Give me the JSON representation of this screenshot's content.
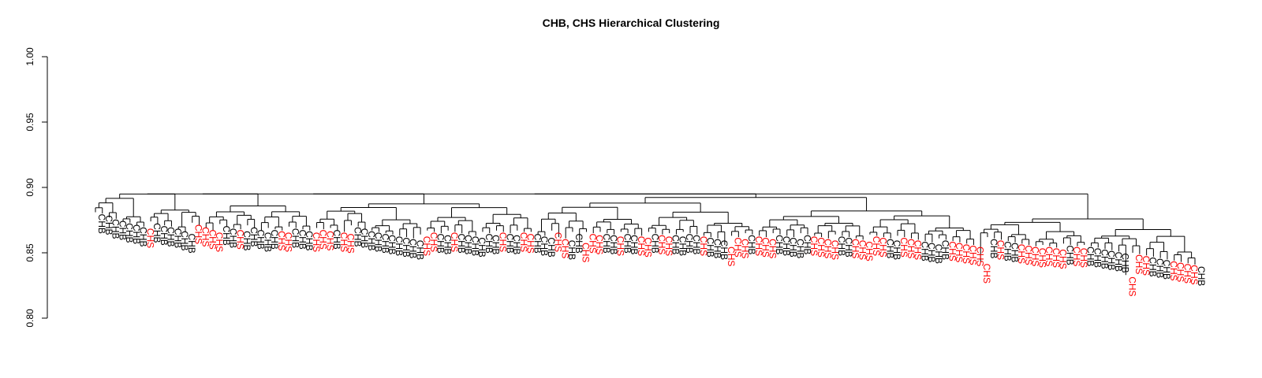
{
  "chart_data": {
    "type": "dendrogram",
    "title": "CHB, CHS Hierarchical Clustering",
    "xlabel": "",
    "ylabel": "",
    "ylim": [
      0.8,
      1.0
    ],
    "yticks": [
      "0.80",
      "0.85",
      "0.90",
      "0.95",
      "1.00"
    ],
    "label_colors": {
      "CHB": "#000000",
      "CHS": "#ff0000"
    },
    "leaves": [
      {
        "label": "CHB",
        "h": 0.881
      },
      {
        "label": "CHB",
        "h": 0.88
      },
      {
        "label": "CHB",
        "h": 0.877
      },
      {
        "label": "CHB",
        "h": 0.876
      },
      {
        "label": "CHB",
        "h": 0.874
      },
      {
        "label": "CHB",
        "h": 0.873
      },
      {
        "label": "CHB",
        "h": 0.871
      },
      {
        "label": "CHS",
        "h": 0.87
      },
      {
        "label": "CHB",
        "h": 0.874
      },
      {
        "label": "CHB",
        "h": 0.872
      },
      {
        "label": "CHB",
        "h": 0.871
      },
      {
        "label": "CHB",
        "h": 0.87
      },
      {
        "label": "CHB",
        "h": 0.868
      },
      {
        "label": "CHB",
        "h": 0.866
      },
      {
        "label": "CHS",
        "h": 0.873
      },
      {
        "label": "CHS",
        "h": 0.871
      },
      {
        "label": "CHS",
        "h": 0.869
      },
      {
        "label": "CHS",
        "h": 0.867
      },
      {
        "label": "CHB",
        "h": 0.872
      },
      {
        "label": "CHB",
        "h": 0.87
      },
      {
        "label": "CHS",
        "h": 0.869
      },
      {
        "label": "CHB",
        "h": 0.868
      },
      {
        "label": "CHB",
        "h": 0.871
      },
      {
        "label": "CHB",
        "h": 0.869
      },
      {
        "label": "CHB",
        "h": 0.867
      },
      {
        "label": "CHB",
        "h": 0.869
      },
      {
        "label": "CHS",
        "h": 0.868
      },
      {
        "label": "CHS",
        "h": 0.867
      },
      {
        "label": "CHB",
        "h": 0.87
      },
      {
        "label": "CHB",
        "h": 0.869
      },
      {
        "label": "CHB",
        "h": 0.868
      },
      {
        "label": "CHS",
        "h": 0.867
      },
      {
        "label": "CHS",
        "h": 0.869
      },
      {
        "label": "CHS",
        "h": 0.868
      },
      {
        "label": "CHB",
        "h": 0.869
      },
      {
        "label": "CHS",
        "h": 0.867
      },
      {
        "label": "CHS",
        "h": 0.866
      },
      {
        "label": "CHB",
        "h": 0.871
      },
      {
        "label": "CHB",
        "h": 0.87
      },
      {
        "label": "CHB",
        "h": 0.868
      },
      {
        "label": "CHB",
        "h": 0.867
      },
      {
        "label": "CHB",
        "h": 0.866
      },
      {
        "label": "CHB",
        "h": 0.865
      },
      {
        "label": "CHB",
        "h": 0.864
      },
      {
        "label": "CHB",
        "h": 0.863
      },
      {
        "label": "CHB",
        "h": 0.862
      },
      {
        "label": "CHB",
        "h": 0.861
      },
      {
        "label": "CHS",
        "h": 0.864
      },
      {
        "label": "CHS",
        "h": 0.867
      },
      {
        "label": "CHB",
        "h": 0.866
      },
      {
        "label": "CHB",
        "h": 0.865
      },
      {
        "label": "CHS",
        "h": 0.867
      },
      {
        "label": "CHB",
        "h": 0.866
      },
      {
        "label": "CHB",
        "h": 0.865
      },
      {
        "label": "CHB",
        "h": 0.864
      },
      {
        "label": "CHB",
        "h": 0.863
      },
      {
        "label": "CHB",
        "h": 0.866
      },
      {
        "label": "CHB",
        "h": 0.865
      },
      {
        "label": "CHS",
        "h": 0.867
      },
      {
        "label": "CHB",
        "h": 0.866
      },
      {
        "label": "CHB",
        "h": 0.865
      },
      {
        "label": "CHS",
        "h": 0.867
      },
      {
        "label": "CHS",
        "h": 0.866
      },
      {
        "label": "CHB",
        "h": 0.866
      },
      {
        "label": "CHB",
        "h": 0.864
      },
      {
        "label": "CHB",
        "h": 0.863
      },
      {
        "label": "CHS",
        "h": 0.867
      },
      {
        "label": "CHS",
        "h": 0.862
      },
      {
        "label": "CHB",
        "h": 0.861
      },
      {
        "label": "CHB",
        "h": 0.866
      },
      {
        "label": "CHS",
        "h": 0.859
      },
      {
        "label": "CHS",
        "h": 0.866
      },
      {
        "label": "CHS",
        "h": 0.865
      },
      {
        "label": "CHB",
        "h": 0.866
      },
      {
        "label": "CHB",
        "h": 0.865
      },
      {
        "label": "CHS",
        "h": 0.864
      },
      {
        "label": "CHB",
        "h": 0.866
      },
      {
        "label": "CHB",
        "h": 0.865
      },
      {
        "label": "CHS",
        "h": 0.864
      },
      {
        "label": "CHS",
        "h": 0.863
      },
      {
        "label": "CHB",
        "h": 0.866
      },
      {
        "label": "CHS",
        "h": 0.865
      },
      {
        "label": "CHS",
        "h": 0.864
      },
      {
        "label": "CHB",
        "h": 0.865
      },
      {
        "label": "CHB",
        "h": 0.864
      },
      {
        "label": "CHB",
        "h": 0.866
      },
      {
        "label": "CHB",
        "h": 0.865
      },
      {
        "label": "CHS",
        "h": 0.864
      },
      {
        "label": "CHB",
        "h": 0.863
      },
      {
        "label": "CHB",
        "h": 0.862
      },
      {
        "label": "CHB",
        "h": 0.861
      },
      {
        "label": "CHS",
        "h": 0.856
      },
      {
        "label": "CHS",
        "h": 0.863
      },
      {
        "label": "CHS",
        "h": 0.862
      },
      {
        "label": "CHB",
        "h": 0.865
      },
      {
        "label": "CHS",
        "h": 0.864
      },
      {
        "label": "CHS",
        "h": 0.863
      },
      {
        "label": "CHS",
        "h": 0.862
      },
      {
        "label": "CHB",
        "h": 0.865
      },
      {
        "label": "CHB",
        "h": 0.864
      },
      {
        "label": "CHB",
        "h": 0.863
      },
      {
        "label": "CHB",
        "h": 0.862
      },
      {
        "label": "CHB",
        "h": 0.865
      },
      {
        "label": "CHS",
        "h": 0.864
      },
      {
        "label": "CHS",
        "h": 0.863
      },
      {
        "label": "CHS",
        "h": 0.862
      },
      {
        "label": "CHS",
        "h": 0.861
      },
      {
        "label": "CHB",
        "h": 0.864
      },
      {
        "label": "CHB",
        "h": 0.863
      },
      {
        "label": "CHS",
        "h": 0.862
      },
      {
        "label": "CHS",
        "h": 0.861
      },
      {
        "label": "CHS",
        "h": 0.86
      },
      {
        "label": "CHS",
        "h": 0.864
      },
      {
        "label": "CHS",
        "h": 0.863
      },
      {
        "label": "CHB",
        "h": 0.862
      },
      {
        "label": "CHB",
        "h": 0.861
      },
      {
        "label": "CHS",
        "h": 0.863
      },
      {
        "label": "CHS",
        "h": 0.862
      },
      {
        "label": "CHS",
        "h": 0.861
      },
      {
        "label": "CHB",
        "h": 0.86
      },
      {
        "label": "CHB",
        "h": 0.859
      },
      {
        "label": "CHB",
        "h": 0.858
      },
      {
        "label": "CHB",
        "h": 0.861
      },
      {
        "label": "CHS",
        "h": 0.86
      },
      {
        "label": "CHS",
        "h": 0.859
      },
      {
        "label": "CHS",
        "h": 0.858
      },
      {
        "label": "CHS",
        "h": 0.857
      },
      {
        "label": "CHS",
        "h": 0.856
      },
      {
        "label": "CHS",
        "h": 0.843
      },
      {
        "label": "CHB",
        "h": 0.862
      },
      {
        "label": "CHS",
        "h": 0.861
      },
      {
        "label": "CHB",
        "h": 0.86
      },
      {
        "label": "CHB",
        "h": 0.859
      },
      {
        "label": "CHS",
        "h": 0.858
      },
      {
        "label": "CHS",
        "h": 0.857
      },
      {
        "label": "CHS",
        "h": 0.856
      },
      {
        "label": "CHS",
        "h": 0.855
      },
      {
        "label": "CHS",
        "h": 0.856
      },
      {
        "label": "CHS",
        "h": 0.855
      },
      {
        "label": "CHS",
        "h": 0.854
      },
      {
        "label": "CHB",
        "h": 0.857
      },
      {
        "label": "CHS",
        "h": 0.856
      },
      {
        "label": "CHS",
        "h": 0.855
      },
      {
        "label": "CHB",
        "h": 0.856
      },
      {
        "label": "CHB",
        "h": 0.855
      },
      {
        "label": "CHB",
        "h": 0.854
      },
      {
        "label": "CHB",
        "h": 0.853
      },
      {
        "label": "CHB",
        "h": 0.852
      },
      {
        "label": "CHB",
        "h": 0.851
      },
      {
        "label": "CHS",
        "h": 0.833
      },
      {
        "label": "CHS",
        "h": 0.85
      },
      {
        "label": "CHS",
        "h": 0.849
      },
      {
        "label": "CHB",
        "h": 0.848
      },
      {
        "label": "CHB",
        "h": 0.847
      },
      {
        "label": "CHB",
        "h": 0.846
      },
      {
        "label": "CHS",
        "h": 0.845
      },
      {
        "label": "CHS",
        "h": 0.844
      },
      {
        "label": "CHS",
        "h": 0.843
      },
      {
        "label": "CHS",
        "h": 0.842
      },
      {
        "label": "CHB",
        "h": 0.841
      }
    ]
  }
}
